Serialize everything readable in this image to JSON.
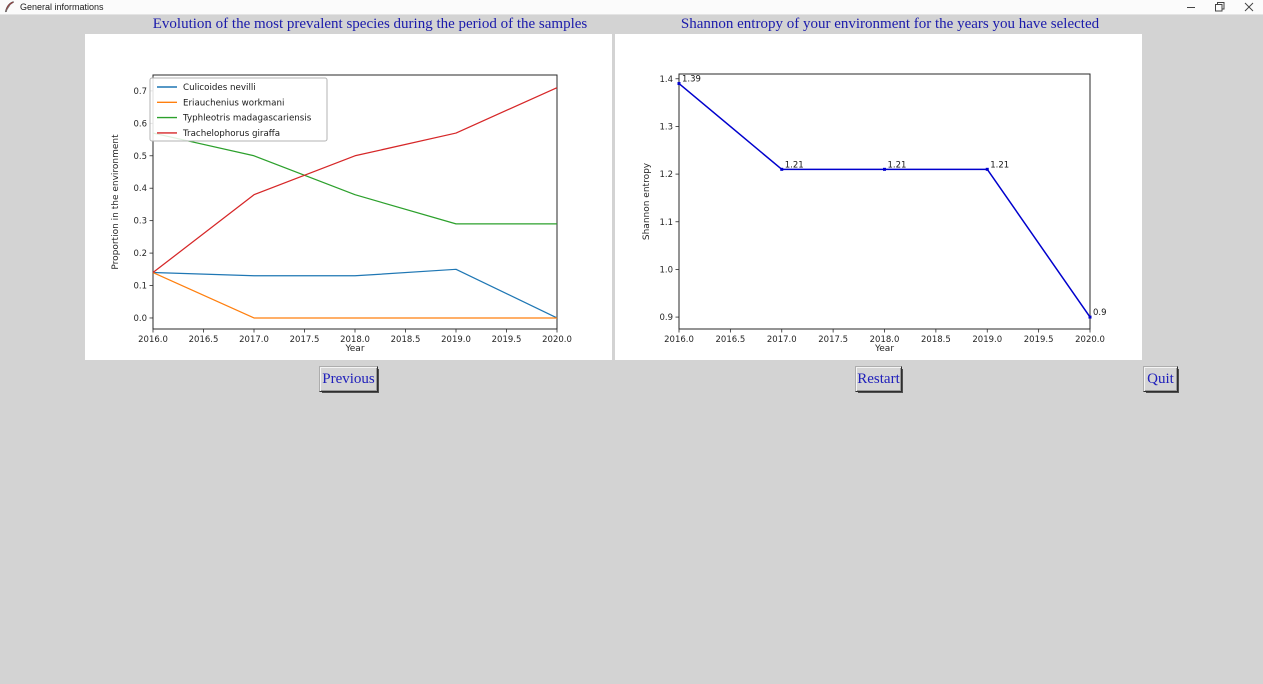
{
  "window": {
    "title": "General informations",
    "controls": {
      "minimize": "minimize",
      "maximize": "maximize",
      "close": "close"
    }
  },
  "panels": {
    "left_title": "Evolution of the most prevalent species during the period of the samples",
    "right_title": "Shannon entropy of your environment for the years you have selected"
  },
  "buttons": {
    "previous": "Previous",
    "restart": "Restart",
    "quit": "Quit"
  },
  "colors": {
    "window_bg": "#d3d3d3",
    "canvas_bg": "#ffffff",
    "title_text": "#1b1bab",
    "button_text": "#2020bb",
    "species_blue": "#1f77b4",
    "species_orange": "#ff7f0e",
    "species_green": "#2ca02c",
    "species_red": "#d62728",
    "entropy_line": "#0000cd"
  },
  "chart_data": [
    {
      "type": "line",
      "title": "Evolution of the most prevalent species during the period of the samples",
      "xlabel": "Year",
      "ylabel": "Proportion in the environment",
      "x": [
        2016,
        2017,
        2018,
        2019,
        2020
      ],
      "xlim": [
        2016,
        2020
      ],
      "ylim": [
        -0.034,
        0.749
      ],
      "grid": false,
      "legend_position": "upper left",
      "xticks": [
        "2016.0",
        "2016.5",
        "2017.0",
        "2017.5",
        "2018.0",
        "2018.5",
        "2019.0",
        "2019.5",
        "2020.0"
      ],
      "yticks": [
        "0.0",
        "0.1",
        "0.2",
        "0.3",
        "0.4",
        "0.5",
        "0.6",
        "0.7"
      ],
      "series": [
        {
          "name": "Culicoides nevilli",
          "color": "#1f77b4",
          "values": [
            0.14,
            0.13,
            0.13,
            0.15,
            0.0
          ]
        },
        {
          "name": "Eriauchenius workmani",
          "color": "#ff7f0e",
          "values": [
            0.14,
            0.0,
            0.0,
            0.0,
            0.0
          ]
        },
        {
          "name": "Typhleotris madagascariensis",
          "color": "#2ca02c",
          "values": [
            0.57,
            0.5,
            0.38,
            0.29,
            0.29
          ]
        },
        {
          "name": "Trachelophorus giraffa",
          "color": "#d62728",
          "values": [
            0.14,
            0.38,
            0.5,
            0.57,
            0.71
          ]
        }
      ]
    },
    {
      "type": "line",
      "title": "Shannon entropy of your environment for the years you have selected",
      "xlabel": "Year",
      "ylabel": "Shannon entropy",
      "x": [
        2016,
        2017,
        2018,
        2019,
        2020
      ],
      "xlim": [
        2016,
        2020
      ],
      "ylim": [
        0.875,
        1.41
      ],
      "grid": false,
      "xticks": [
        "2016.0",
        "2016.5",
        "2017.0",
        "2017.5",
        "2018.0",
        "2018.5",
        "2019.0",
        "2019.5",
        "2020.0"
      ],
      "yticks": [
        "0.9",
        "1.0",
        "1.1",
        "1.2",
        "1.3",
        "1.4"
      ],
      "series": [
        {
          "name": "Shannon entropy",
          "color": "#0000cd",
          "marker": "square",
          "values": [
            1.39,
            1.21,
            1.21,
            1.21,
            0.9
          ]
        }
      ],
      "annotations": [
        "1.39",
        "1.21",
        "1.21",
        "1.21",
        "0.9"
      ]
    }
  ]
}
